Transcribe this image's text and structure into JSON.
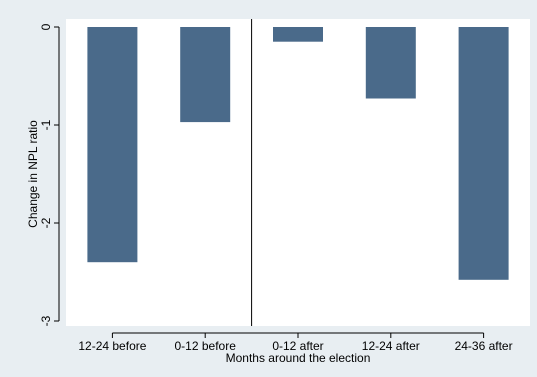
{
  "chart_data": {
    "type": "bar",
    "categories": [
      "12-24 before",
      "0-12 before",
      "0-12 after",
      "12-24 after",
      "24-36 after"
    ],
    "values": [
      -2.4,
      -0.97,
      -0.15,
      -0.73,
      -2.58
    ],
    "xlabel": "Months around the election",
    "ylabel": "Change in NPL ratio",
    "ylim": [
      -3,
      0
    ],
    "yticks": [
      0,
      -1,
      -2,
      -3
    ],
    "reference_line_between": [
      "0-12 before",
      "0-12 after"
    ],
    "bar_color": "#4a6a8a",
    "plot_background": "#ffffff",
    "outer_background": "#e8eef2",
    "grid": false,
    "legend": "none"
  }
}
